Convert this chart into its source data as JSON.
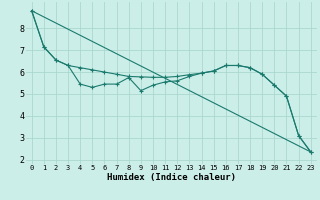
{
  "xlabel": "Humidex (Indice chaleur)",
  "background_color": "#cceee8",
  "grid_color": "#aad8d0",
  "line_color": "#1a7a6e",
  "xlim": [
    -0.5,
    23.5
  ],
  "ylim": [
    1.8,
    9.2
  ],
  "xticks": [
    0,
    1,
    2,
    3,
    4,
    5,
    6,
    7,
    8,
    9,
    10,
    11,
    12,
    13,
    14,
    15,
    16,
    17,
    18,
    19,
    20,
    21,
    22,
    23
  ],
  "yticks": [
    2,
    3,
    4,
    5,
    6,
    7,
    8
  ],
  "line1_x": [
    0,
    1,
    2,
    3,
    4,
    5,
    6,
    7,
    8,
    9,
    10,
    11,
    12,
    13,
    14,
    15,
    16,
    17,
    18,
    19,
    20,
    21,
    22,
    23
  ],
  "line1_y": [
    8.8,
    7.15,
    6.55,
    6.3,
    6.2,
    6.1,
    6.0,
    5.9,
    5.8,
    5.78,
    5.76,
    5.76,
    5.8,
    5.88,
    5.95,
    6.05,
    6.3,
    6.3,
    6.2,
    5.9,
    5.4,
    4.9,
    3.1,
    2.35
  ],
  "line2_x": [
    0,
    1,
    2,
    3,
    4,
    5,
    6,
    7,
    8,
    9,
    10,
    11,
    12,
    13,
    14,
    15,
    16,
    17,
    18,
    19,
    20,
    21,
    22,
    23
  ],
  "line2_y": [
    8.8,
    7.15,
    6.55,
    6.3,
    5.45,
    5.3,
    5.45,
    5.45,
    5.75,
    5.15,
    5.4,
    5.55,
    5.6,
    5.8,
    5.95,
    6.05,
    6.3,
    6.3,
    6.2,
    5.9,
    5.4,
    4.9,
    3.1,
    2.35
  ],
  "line3_x": [
    0,
    23
  ],
  "line3_y": [
    8.8,
    2.35
  ]
}
